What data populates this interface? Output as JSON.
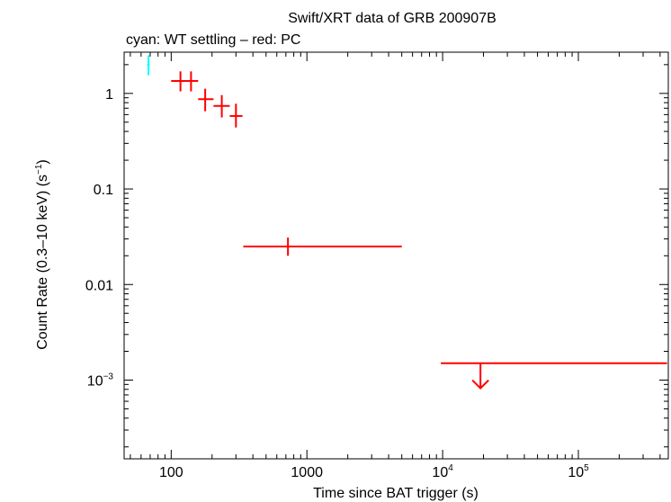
{
  "chart_data": {
    "type": "scatter",
    "title": "Swift/XRT data of GRB 200907B",
    "subtitle": "cyan: WT settling – red: PC",
    "xlabel": "Time since BAT trigger (s)",
    "ylabel": "Count Rate (0.3–10 keV) (s",
    "ylabel_sup": "−1",
    "ylabel_close": ")",
    "x_scale": "log",
    "y_scale": "log",
    "xlim": [
      45,
      460000
    ],
    "ylim": [
      0.00015,
      2.7
    ],
    "grid": false,
    "x_ticks": [
      {
        "value": 100,
        "label": "100"
      },
      {
        "value": 1000,
        "label": "1000"
      },
      {
        "value": 10000,
        "base": "10",
        "exp": "4"
      },
      {
        "value": 100000,
        "base": "10",
        "exp": "5"
      }
    ],
    "y_ticks": [
      {
        "value": 1,
        "label": "1"
      },
      {
        "value": 0.1,
        "label": "0.1"
      },
      {
        "value": 0.01,
        "label": "0.01"
      },
      {
        "value": 0.001,
        "base": "10",
        "exp": "−3"
      }
    ],
    "series": [
      {
        "mode": "WT settling",
        "color": "#00ffff",
        "points": [
          {
            "x": 68,
            "xerr": [
              66.5,
              69.5
            ],
            "y": 2.0,
            "yerr": [
              1.55,
              2.5
            ]
          }
        ]
      },
      {
        "mode": "PC",
        "color": "#ff0000",
        "points": [
          {
            "x": 117,
            "xerr": [
              100,
              128
            ],
            "y": 1.35,
            "yerr": [
              1.05,
              1.7
            ]
          },
          {
            "x": 140,
            "xerr": [
              128,
              158
            ],
            "y": 1.35,
            "yerr": [
              1.05,
              1.7
            ]
          },
          {
            "x": 178,
            "xerr": [
              158,
              205
            ],
            "y": 0.87,
            "yerr": [
              0.65,
              1.12
            ]
          },
          {
            "x": 236,
            "xerr": [
              205,
              270
            ],
            "y": 0.74,
            "yerr": [
              0.56,
              0.96
            ]
          },
          {
            "x": 300,
            "xerr": [
              270,
              335
            ],
            "y": 0.58,
            "yerr": [
              0.44,
              0.78
            ]
          },
          {
            "x": 725,
            "xerr": [
              340,
              5000
            ],
            "y": 0.025,
            "yerr": [
              0.02,
              0.031
            ]
          }
        ]
      },
      {
        "mode": "PC upper limit",
        "color": "#ff0000",
        "upper_limit": true,
        "points": [
          {
            "x": 19000,
            "xerr": [
              9700,
              450000
            ],
            "y": 0.0015,
            "arrow_to": 0.00082
          }
        ]
      }
    ]
  }
}
